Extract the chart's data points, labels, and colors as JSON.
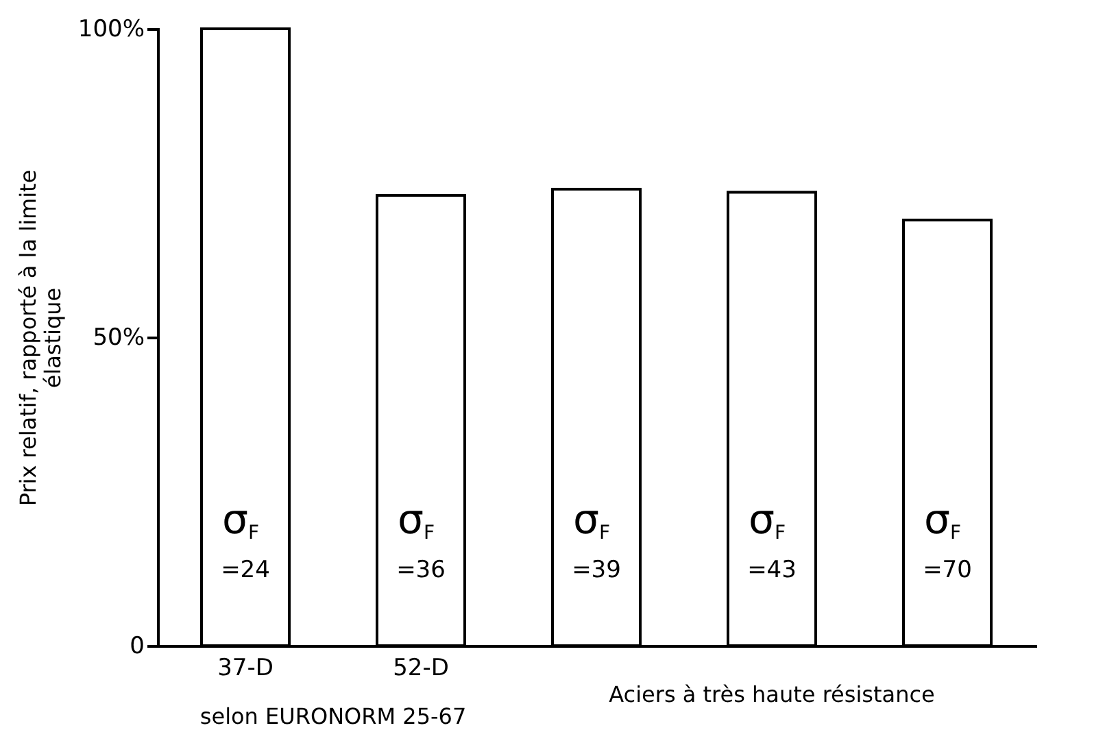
{
  "chart_data": {
    "type": "bar",
    "ylabel": "Prix relatif, rapporté à la limite élastique",
    "categories": [
      "37-D",
      "52-D",
      null,
      null,
      null
    ],
    "values": [
      100,
      73,
      74,
      73.5,
      69
    ],
    "color": "#ffffff",
    "ylim": [
      0,
      100
    ],
    "yticks": [
      {
        "value": 0,
        "label": "0"
      },
      {
        "value": 50,
        "label": "50%"
      },
      {
        "value": 100,
        "label": "100%"
      }
    ],
    "grid": false,
    "annotations": [
      "σ$_{F}$ =24",
      "σ$_{F}$ =36",
      "σ$_{F}$ =39",
      "σ$_{F}$ =43",
      "σ$_{F}$ =70",
      "selon EURONORM 25-67",
      "Aciers à très haute résistance"
    ]
  }
}
